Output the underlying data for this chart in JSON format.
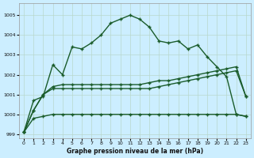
{
  "title": "Graphe pression niveau de la mer (hPa)",
  "bg_color": "#cceeff",
  "grid_color": "#b8d8cc",
  "line_color": "#1a5c2a",
  "xlim": [
    -0.5,
    23.5
  ],
  "ylim": [
    998.8,
    1005.6
  ],
  "yticks": [
    999,
    1000,
    1001,
    1002,
    1003,
    1004,
    1005
  ],
  "xticks": [
    0,
    1,
    2,
    3,
    4,
    5,
    6,
    7,
    8,
    9,
    10,
    11,
    12,
    13,
    14,
    15,
    16,
    17,
    18,
    19,
    20,
    21,
    22,
    23
  ],
  "s1": [
    999.1,
    1000.7,
    1000.9,
    1002.5,
    1002.0,
    1003.4,
    1003.3,
    1003.6,
    1004.0,
    1004.6,
    1004.8,
    1005.0,
    1004.8,
    1004.4,
    1003.7,
    1003.6,
    1003.7,
    1003.3,
    1003.5,
    1002.9,
    1002.4,
    1001.9,
    1000.0,
    999.9
  ],
  "s2": [
    999.1,
    1000.2,
    1001.0,
    1001.4,
    1001.5,
    1001.5,
    1001.5,
    1001.5,
    1001.5,
    1001.5,
    1001.5,
    1001.5,
    1001.5,
    1001.6,
    1001.7,
    1001.7,
    1001.8,
    1001.9,
    1002.0,
    1002.1,
    1002.2,
    1002.3,
    1002.4,
    1000.9
  ],
  "s3": [
    999.1,
    1000.2,
    1001.0,
    1001.3,
    1001.3,
    1001.3,
    1001.3,
    1001.3,
    1001.3,
    1001.3,
    1001.3,
    1001.3,
    1001.3,
    1001.3,
    1001.4,
    1001.5,
    1001.6,
    1001.7,
    1001.8,
    1001.9,
    1002.0,
    1002.1,
    1002.2,
    1000.9
  ],
  "s4": [
    999.1,
    999.8,
    999.9,
    1000.0,
    1000.0,
    1000.0,
    1000.0,
    1000.0,
    1000.0,
    1000.0,
    1000.0,
    1000.0,
    1000.0,
    1000.0,
    1000.0,
    1000.0,
    1000.0,
    1000.0,
    1000.0,
    1000.0,
    1000.0,
    1000.0,
    1000.0,
    999.9
  ]
}
